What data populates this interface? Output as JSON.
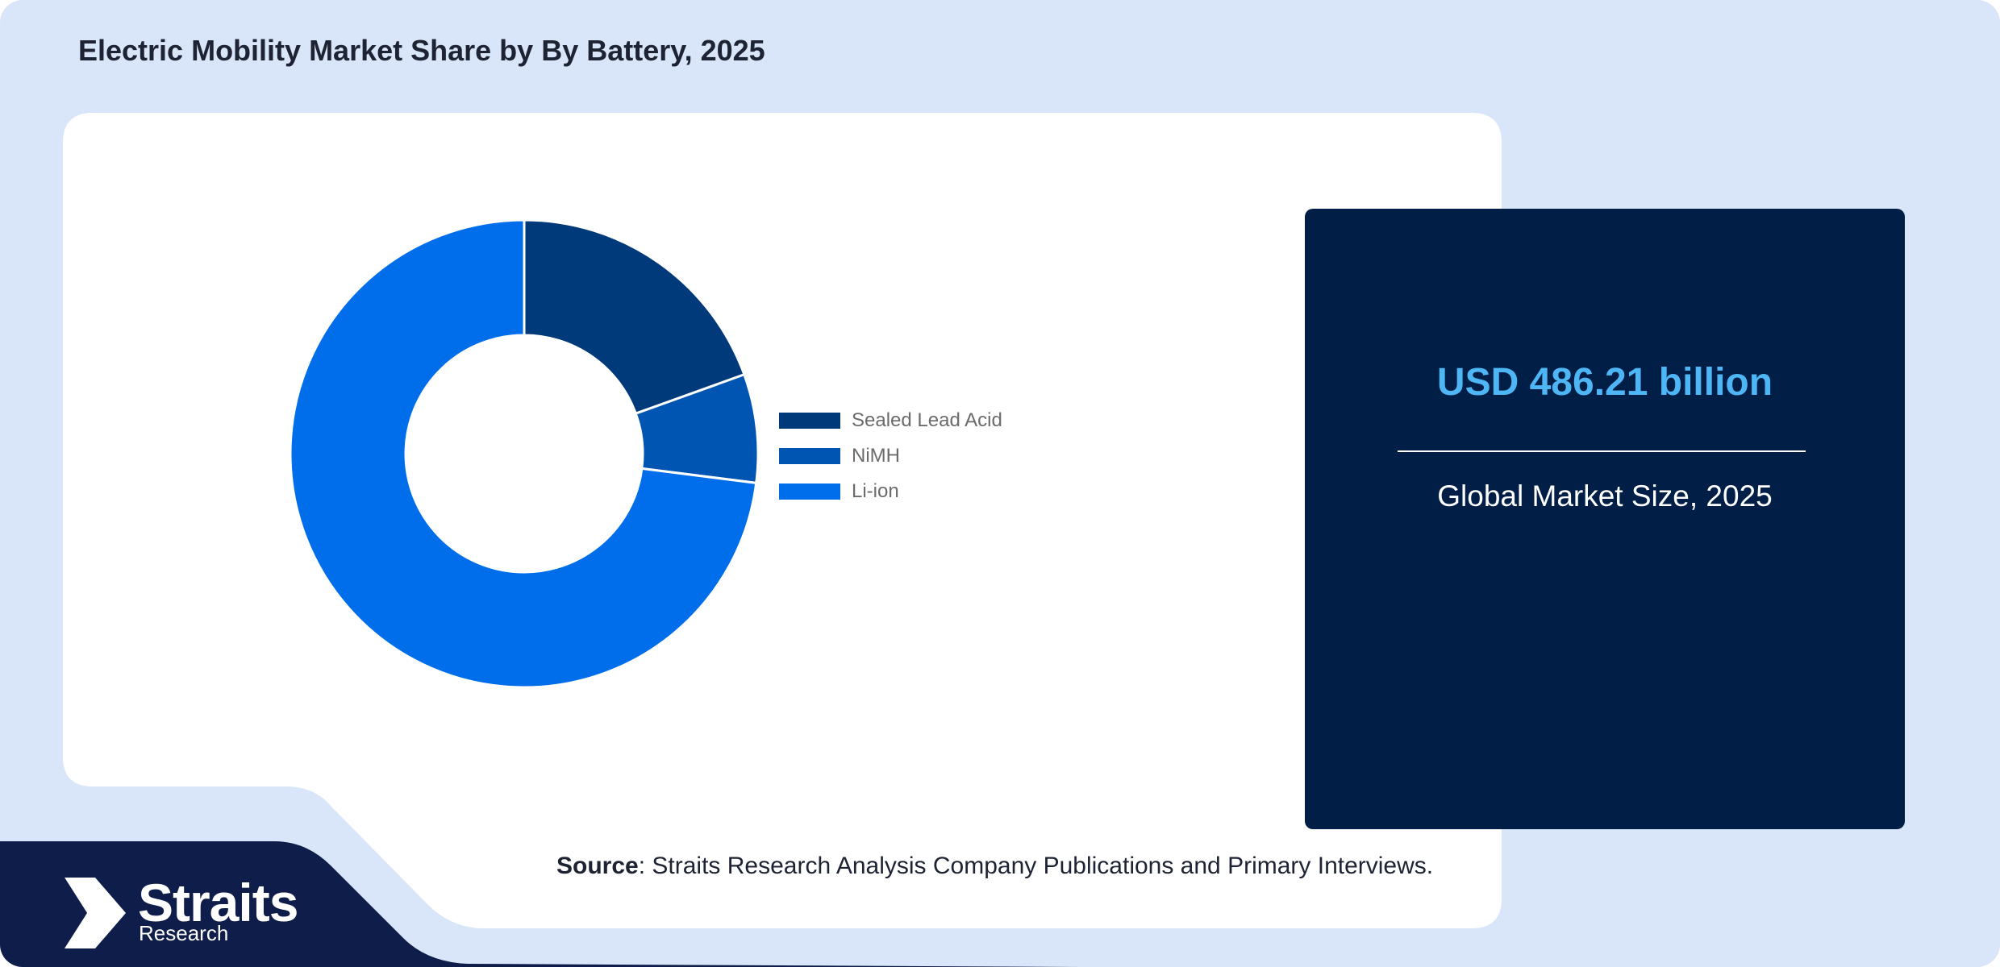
{
  "page": {
    "title": "Electric Mobility Market Share by By Battery, 2025"
  },
  "colors": {
    "background": "#d9e6f9",
    "panel": "#ffffff",
    "card": "#011e47",
    "accent_value": "#4fb6f5",
    "footer": "#0f1d4a"
  },
  "chart_data": {
    "type": "pie",
    "donut": true,
    "title": "",
    "legend_position": "right",
    "labels": [
      "Sealed Lead Acid",
      "NiMH",
      "Li-ion"
    ],
    "values": [
      19.5,
      7.5,
      73
    ],
    "unit": "%",
    "colors": [
      "#003a7a",
      "#0055b3",
      "#006eeb"
    ]
  },
  "stat_card": {
    "value": "USD 486.21 billion",
    "label": "Global Market Size, 2025"
  },
  "source": {
    "label": "Source",
    "text": ": Straits Research Analysis Company Publications and Primary Interviews."
  },
  "logo": {
    "name": "Straits",
    "sub": "Research",
    "icon": "straits-arrow-icon"
  }
}
